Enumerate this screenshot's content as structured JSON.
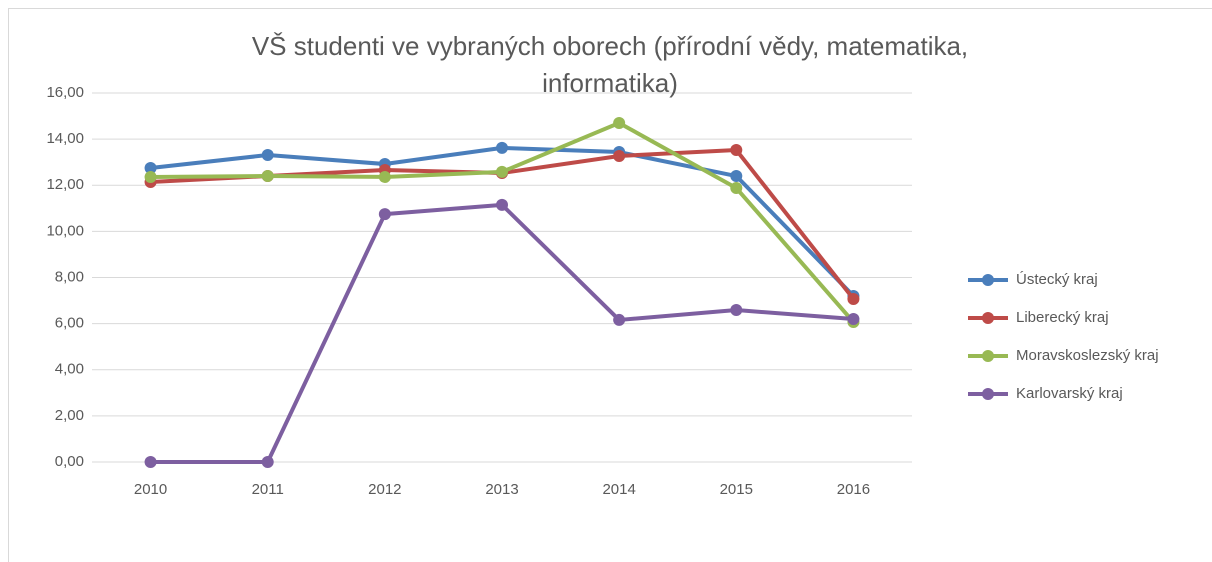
{
  "chart_data": {
    "type": "line",
    "title": "VŠ studenti ve vybraných oborech (přírodní vědy, matematika, informatika)",
    "categories": [
      "2010",
      "2011",
      "2012",
      "2013",
      "2014",
      "2015",
      "2016"
    ],
    "series": [
      {
        "name": "Ústecký kraj",
        "color": "#4a7ebb",
        "values": [
          12.75,
          13.31,
          12.92,
          13.62,
          13.44,
          12.4,
          7.2
        ]
      },
      {
        "name": "Liberecký kraj",
        "color": "#be4b48",
        "values": [
          12.14,
          12.4,
          12.66,
          12.53,
          13.27,
          13.53,
          7.07
        ]
      },
      {
        "name": "Moravskoslezský kraj",
        "color": "#98b954",
        "values": [
          12.36,
          12.4,
          12.36,
          12.58,
          14.7,
          11.88,
          6.07
        ]
      },
      {
        "name": "Karlovarský kraj",
        "color": "#7d5fa0",
        "values": [
          0,
          0,
          10.75,
          11.15,
          6.16,
          6.59,
          6.2
        ]
      }
    ],
    "ylim": [
      0,
      16
    ],
    "yticks": [
      {
        "value": 0,
        "label": "0,00"
      },
      {
        "value": 2,
        "label": "2,00"
      },
      {
        "value": 4,
        "label": "4,00"
      },
      {
        "value": 6,
        "label": "6,00"
      },
      {
        "value": 8,
        "label": "8,00"
      },
      {
        "value": 10,
        "label": "10,00"
      },
      {
        "value": 12,
        "label": "12,00"
      },
      {
        "value": 14,
        "label": "14,00"
      },
      {
        "value": 16,
        "label": "16,00"
      }
    ],
    "grid": true,
    "legend": "right"
  }
}
